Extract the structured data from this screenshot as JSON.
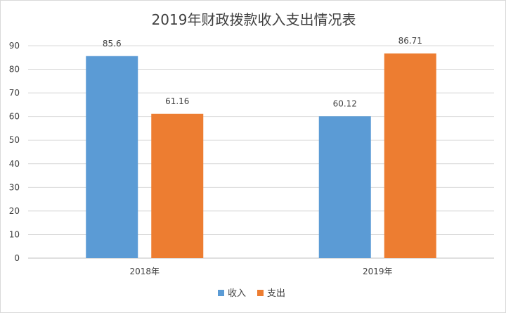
{
  "chart_data": {
    "type": "bar",
    "title": "2019年财政拨款收入支出情况表",
    "categories": [
      "2018年",
      "2019年"
    ],
    "series": [
      {
        "name": "收入",
        "values": [
          85.6,
          60.12
        ],
        "labels": [
          "85.6",
          "60.12"
        ],
        "color": "#5b9bd5"
      },
      {
        "name": "支出",
        "values": [
          61.16,
          86.71
        ],
        "labels": [
          "61.16",
          "86.71"
        ],
        "color": "#ed7d31"
      }
    ],
    "xlabel": "",
    "ylabel": "",
    "ylim": [
      0,
      90
    ],
    "yticks": [
      0,
      10,
      20,
      30,
      40,
      50,
      60,
      70,
      80,
      90
    ],
    "grid": true,
    "legend": "bottom"
  }
}
